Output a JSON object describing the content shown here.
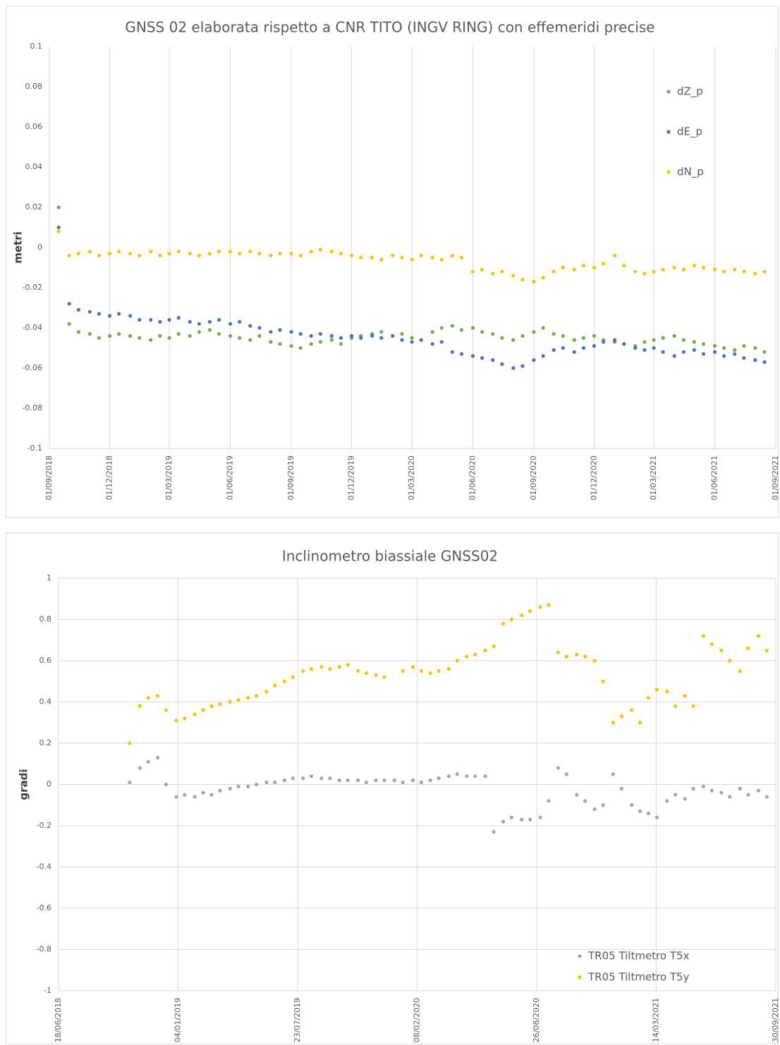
{
  "chart_data": [
    {
      "type": "scatter",
      "title": "GNSS 02 elaborata rispetto a CNR TITO (INGV RING) con effemeridi precise",
      "y_label": "metri",
      "x": [
        "15/09/2018",
        "01/10/2018",
        "15/10/2018",
        "01/11/2018",
        "15/11/2018",
        "01/12/2018",
        "15/12/2018",
        "01/01/2019",
        "15/01/2019",
        "01/02/2019",
        "15/02/2019",
        "01/03/2019",
        "15/03/2019",
        "01/04/2019",
        "15/04/2019",
        "01/05/2019",
        "15/05/2019",
        "01/06/2019",
        "15/06/2019",
        "01/07/2019",
        "15/07/2019",
        "01/08/2019",
        "15/08/2019",
        "01/09/2019",
        "15/09/2019",
        "01/10/2019",
        "15/10/2019",
        "01/11/2019",
        "15/11/2019",
        "01/12/2019",
        "15/12/2019",
        "01/01/2020",
        "15/01/2020",
        "01/02/2020",
        "15/02/2020",
        "01/03/2020",
        "15/03/2020",
        "01/04/2020",
        "15/04/2020",
        "01/05/2020",
        "15/05/2020",
        "01/06/2020",
        "15/06/2020",
        "01/07/2020",
        "15/07/2020",
        "01/08/2020",
        "15/08/2020",
        "01/09/2020",
        "15/09/2020",
        "01/10/2020",
        "15/10/2020",
        "01/11/2020",
        "15/11/2020",
        "01/12/2020",
        "15/12/2020",
        "01/01/2021",
        "15/01/2021",
        "01/02/2021",
        "15/02/2021",
        "01/03/2021",
        "15/03/2021",
        "01/04/2021",
        "15/04/2021",
        "01/05/2021",
        "15/05/2021",
        "01/06/2021",
        "15/06/2021",
        "01/07/2021",
        "15/07/2021",
        "01/08/2021",
        "15/08/2021"
      ],
      "series": [
        {
          "name": "dZ_p",
          "color": "#70ad47",
          "values": [
            0.02,
            -0.038,
            -0.042,
            -0.043,
            -0.045,
            -0.044,
            -0.043,
            -0.044,
            -0.045,
            -0.046,
            -0.044,
            -0.045,
            -0.043,
            -0.044,
            -0.042,
            -0.041,
            -0.043,
            -0.044,
            -0.045,
            -0.046,
            -0.044,
            -0.047,
            -0.048,
            -0.049,
            -0.05,
            -0.048,
            -0.047,
            -0.046,
            -0.048,
            -0.045,
            -0.044,
            -0.043,
            -0.042,
            -0.044,
            -0.043,
            -0.045,
            -0.046,
            -0.042,
            -0.04,
            -0.039,
            -0.041,
            -0.04,
            -0.042,
            -0.043,
            -0.045,
            -0.046,
            -0.044,
            -0.042,
            -0.04,
            -0.043,
            -0.044,
            -0.046,
            -0.045,
            -0.044,
            -0.046,
            -0.047,
            -0.048,
            -0.049,
            -0.047,
            -0.046,
            -0.045,
            -0.044,
            -0.046,
            -0.047,
            -0.048,
            -0.049,
            -0.05,
            -0.051,
            -0.049,
            -0.05,
            -0.052
          ]
        },
        {
          "name": "dE_p",
          "color": "#4472c4",
          "values": [
            0.01,
            -0.028,
            -0.031,
            -0.032,
            -0.033,
            -0.034,
            -0.033,
            -0.034,
            -0.036,
            -0.036,
            -0.037,
            -0.036,
            -0.035,
            -0.037,
            -0.038,
            -0.037,
            -0.036,
            -0.038,
            -0.037,
            -0.039,
            -0.04,
            -0.042,
            -0.041,
            -0.042,
            -0.043,
            -0.044,
            -0.043,
            -0.044,
            -0.045,
            -0.044,
            -0.045,
            -0.044,
            -0.045,
            -0.044,
            -0.046,
            -0.047,
            -0.046,
            -0.048,
            -0.047,
            -0.052,
            -0.053,
            -0.054,
            -0.055,
            -0.056,
            -0.058,
            -0.06,
            -0.059,
            -0.056,
            -0.054,
            -0.051,
            -0.05,
            -0.052,
            -0.05,
            -0.049,
            -0.047,
            -0.046,
            -0.048,
            -0.05,
            -0.051,
            -0.05,
            -0.052,
            -0.054,
            -0.052,
            -0.051,
            -0.053,
            -0.052,
            -0.054,
            -0.053,
            -0.055,
            -0.056,
            -0.057
          ]
        },
        {
          "name": "dN_p",
          "color": "#ffc000",
          "values": [
            0.008,
            -0.004,
            -0.003,
            -0.002,
            -0.004,
            -0.003,
            -0.002,
            -0.003,
            -0.004,
            -0.002,
            -0.004,
            -0.003,
            -0.002,
            -0.003,
            -0.004,
            -0.003,
            -0.002,
            -0.002,
            -0.003,
            -0.002,
            -0.003,
            -0.004,
            -0.003,
            -0.003,
            -0.004,
            -0.002,
            -0.001,
            -0.002,
            -0.003,
            -0.004,
            -0.005,
            -0.005,
            -0.006,
            -0.004,
            -0.005,
            -0.006,
            -0.004,
            -0.005,
            -0.006,
            -0.004,
            -0.005,
            -0.012,
            -0.011,
            -0.013,
            -0.012,
            -0.014,
            -0.016,
            -0.017,
            -0.015,
            -0.012,
            -0.01,
            -0.011,
            -0.009,
            -0.01,
            -0.008,
            -0.004,
            -0.009,
            -0.012,
            -0.013,
            -0.012,
            -0.011,
            -0.01,
            -0.011,
            -0.009,
            -0.01,
            -0.011,
            -0.012,
            -0.011,
            -0.012,
            -0.013,
            -0.012
          ]
        }
      ],
      "xlim": [
        "01/09/2018",
        "01/09/2021"
      ],
      "xticks": [
        "01/09/2018",
        "01/12/2018",
        "01/03/2019",
        "01/06/2019",
        "01/09/2019",
        "01/12/2019",
        "01/03/2020",
        "01/06/2020",
        "01/09/2020",
        "01/12/2020",
        "01/03/2021",
        "01/06/2021",
        "01/09/2021"
      ],
      "ylim": [
        -0.1,
        0.1
      ],
      "yticks": [
        -0.1,
        -0.08,
        -0.06,
        -0.04,
        -0.02,
        0,
        0.02,
        0.04,
        0.06,
        0.08,
        0.1
      ],
      "grid": "x",
      "legend": "upper right"
    },
    {
      "type": "scatter",
      "title": "Inclinometro biassiale GNSS02",
      "y_label": "gradi",
      "x": [
        "15/10/2018",
        "01/11/2018",
        "15/11/2018",
        "01/12/2018",
        "15/12/2018",
        "01/01/2019",
        "15/01/2019",
        "01/02/2019",
        "15/02/2019",
        "01/03/2019",
        "15/03/2019",
        "01/04/2019",
        "15/04/2019",
        "01/05/2019",
        "15/05/2019",
        "01/06/2019",
        "15/06/2019",
        "01/07/2019",
        "15/07/2019",
        "01/08/2019",
        "15/08/2019",
        "01/09/2019",
        "15/09/2019",
        "01/10/2019",
        "15/10/2019",
        "01/11/2019",
        "15/11/2019",
        "01/12/2019",
        "15/12/2019",
        "01/01/2020",
        "15/01/2020",
        "01/02/2020",
        "15/02/2020",
        "01/03/2020",
        "15/03/2020",
        "01/04/2020",
        "15/04/2020",
        "01/05/2020",
        "15/05/2020",
        "01/06/2020",
        "15/06/2020",
        "01/07/2020",
        "15/07/2020",
        "01/08/2020",
        "15/08/2020",
        "01/09/2020",
        "15/09/2020",
        "01/10/2020",
        "15/10/2020",
        "01/11/2020",
        "15/11/2020",
        "01/12/2020",
        "15/12/2020",
        "01/01/2021",
        "15/01/2021",
        "01/02/2021",
        "15/02/2021",
        "01/03/2021",
        "15/03/2021",
        "01/04/2021",
        "15/04/2021",
        "01/05/2021",
        "15/05/2021",
        "01/06/2021",
        "15/06/2021",
        "01/07/2021",
        "15/07/2021",
        "01/08/2021",
        "15/08/2021",
        "01/09/2021",
        "15/09/2021"
      ],
      "series": [
        {
          "name": "TR05 Tiltmetro T5x",
          "color": "#a5a5a5",
          "values": [
            0.01,
            0.08,
            0.11,
            0.13,
            0.0,
            -0.06,
            -0.05,
            -0.06,
            -0.04,
            -0.05,
            -0.03,
            -0.02,
            -0.01,
            -0.01,
            0.0,
            0.01,
            0.01,
            0.02,
            0.03,
            0.03,
            0.04,
            0.03,
            0.03,
            0.02,
            0.02,
            0.02,
            0.01,
            0.02,
            0.02,
            0.02,
            0.01,
            0.02,
            0.01,
            0.02,
            0.03,
            0.04,
            0.05,
            0.04,
            0.04,
            0.04,
            -0.23,
            -0.18,
            -0.16,
            -0.17,
            -0.17,
            -0.16,
            -0.08,
            0.08,
            0.05,
            -0.05,
            -0.08,
            -0.12,
            -0.1,
            0.05,
            -0.02,
            -0.1,
            -0.13,
            -0.14,
            -0.16,
            -0.08,
            -0.05,
            -0.07,
            -0.02,
            -0.01,
            -0.03,
            -0.04,
            -0.06,
            -0.02,
            -0.05,
            -0.03,
            -0.06
          ]
        },
        {
          "name": "TR05 Tiltmetro T5y",
          "color": "#ffc000",
          "values": [
            0.2,
            0.38,
            0.42,
            0.43,
            0.36,
            0.31,
            0.32,
            0.34,
            0.36,
            0.38,
            0.39,
            0.4,
            0.41,
            0.42,
            0.43,
            0.45,
            0.48,
            0.5,
            0.52,
            0.55,
            0.56,
            0.57,
            0.56,
            0.57,
            0.58,
            0.55,
            0.54,
            0.53,
            0.52,
            null,
            0.55,
            0.57,
            0.55,
            0.54,
            0.55,
            0.56,
            0.6,
            0.62,
            0.63,
            0.65,
            0.67,
            0.78,
            0.8,
            0.82,
            0.84,
            0.86,
            0.87,
            0.64,
            0.62,
            0.63,
            0.62,
            0.6,
            0.5,
            0.3,
            0.33,
            0.36,
            0.3,
            0.42,
            0.46,
            0.45,
            0.38,
            0.43,
            0.38,
            0.72,
            0.68,
            0.65,
            0.6,
            0.55,
            0.66,
            0.72,
            0.65
          ]
        }
      ],
      "xlim": [
        "18/06/2018",
        "30/09/2021"
      ],
      "xticks": [
        "18/06/2018",
        "04/01/2019",
        "23/07/2019",
        "08/02/2020",
        "26/08/2020",
        "14/03/2021",
        "30/09/2021"
      ],
      "ylim": [
        -1,
        1
      ],
      "yticks": [
        -1,
        -0.8,
        -0.6,
        -0.4,
        -0.2,
        0,
        0.2,
        0.4,
        0.6,
        0.8,
        1
      ],
      "grid": "both",
      "legend": "lower right"
    }
  ]
}
